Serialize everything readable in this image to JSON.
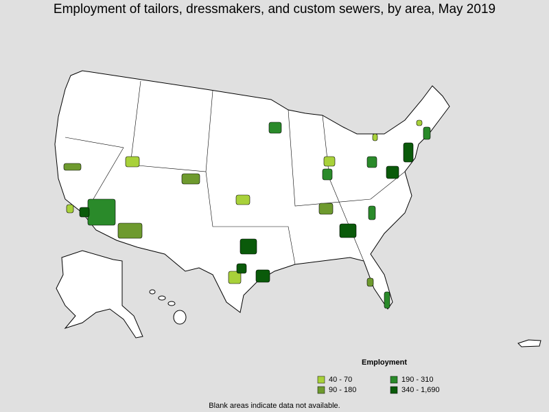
{
  "header": {
    "title": "Employment of tailors, dressmakers, and custom sewers, by area, May 2019"
  },
  "legend": {
    "title": "Employment",
    "items": [
      {
        "label": "40 - 70",
        "color": "#a8d13a"
      },
      {
        "label": "190 - 310",
        "color": "#2a8a2a"
      },
      {
        "label": "90 - 180",
        "color": "#6e9a2e"
      },
      {
        "label": "340 - 1,690",
        "color": "#0a5a0a"
      }
    ]
  },
  "footnote": "Blank areas indicate data not available."
}
